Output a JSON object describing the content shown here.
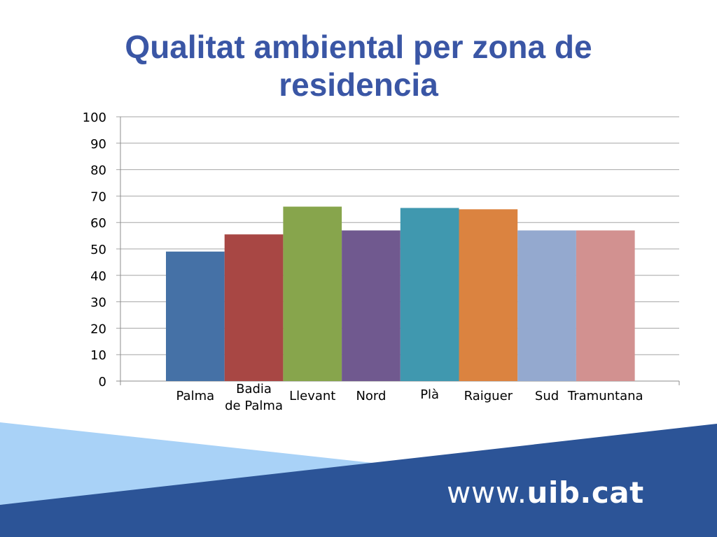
{
  "slide": {
    "title_line1": "Qualitat ambiental per zona de",
    "title_line2": "residencia",
    "url_prefix": "www.",
    "url_domain": "uib.cat"
  },
  "colors": {
    "title": "#3A56A5",
    "band_dark": "#2C5497",
    "band_light": "#A9D2F7"
  },
  "chart_data": {
    "type": "bar",
    "title": "Qualitat ambiental per zona de residencia",
    "categories": [
      [
        "Palma"
      ],
      [
        "Badia",
        "de Palma"
      ],
      [
        "Llevant"
      ],
      [
        "Nord"
      ],
      [
        "Plà"
      ],
      [
        "Raiguer"
      ],
      [
        "Sud"
      ],
      [
        "Tramuntana"
      ]
    ],
    "values": [
      49,
      55.5,
      66,
      57,
      65.5,
      65,
      57,
      57
    ],
    "colors": [
      "#4571A6",
      "#A84744",
      "#87A54C",
      "#70598F",
      "#4098AF",
      "#DB8340",
      "#94A9CF",
      "#D29190"
    ],
    "ylim": [
      0,
      100
    ],
    "yticks": [
      0,
      10,
      20,
      30,
      40,
      50,
      60,
      70,
      80,
      90,
      100
    ],
    "grid": true,
    "legend": "none",
    "xlabel": "",
    "ylabel": ""
  }
}
